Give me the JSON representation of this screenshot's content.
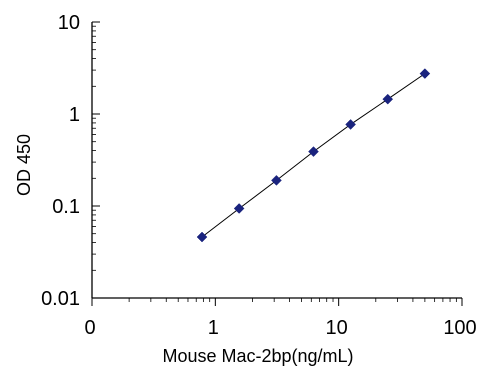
{
  "chart_data": {
    "type": "scatter",
    "xlabel": "Mouse Mac-2bp(ng/mL)",
    "ylabel": "OD 450",
    "xscale": "log",
    "yscale": "log",
    "xlim": [
      0.1,
      100
    ],
    "ylim": [
      0.01,
      10
    ],
    "x_tick_labels": [
      "0",
      "1",
      "10",
      "100"
    ],
    "y_tick_labels": [
      "10",
      "1",
      "0.1",
      "0.01"
    ],
    "grid": false,
    "legend": "none",
    "marker": "diamond",
    "marker_color": "#1a237e",
    "line_color": "#000000",
    "points": [
      {
        "x": 0.78,
        "y": 0.046
      },
      {
        "x": 1.56,
        "y": 0.094
      },
      {
        "x": 3.13,
        "y": 0.19
      },
      {
        "x": 6.25,
        "y": 0.39
      },
      {
        "x": 12.5,
        "y": 0.77
      },
      {
        "x": 25,
        "y": 1.45
      },
      {
        "x": 50,
        "y": 2.75
      }
    ],
    "fit_line": "connects points"
  }
}
